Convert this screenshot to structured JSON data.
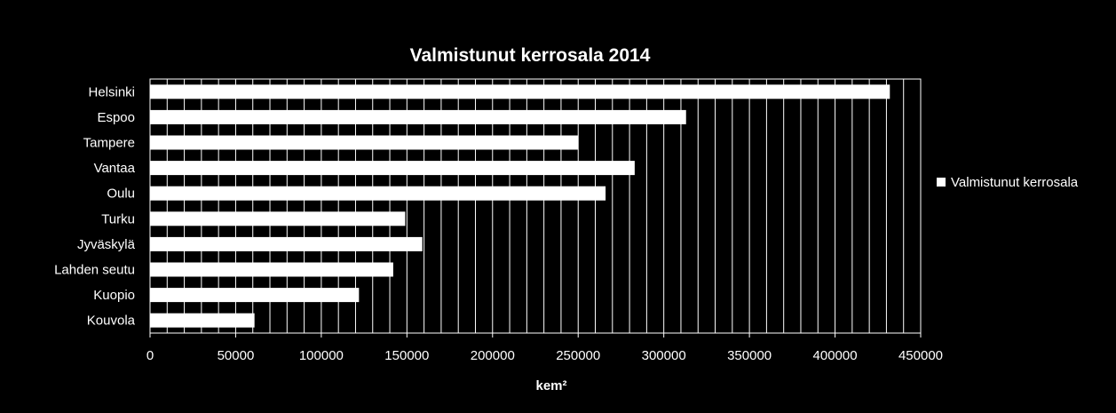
{
  "chart_data": {
    "type": "bar",
    "orientation": "horizontal",
    "title": "Valmistunut kerrosala 2014",
    "xlabel": "kem²",
    "ylabel": "",
    "categories": [
      "Helsinki",
      "Espoo",
      "Tampere",
      "Vantaa",
      "Oulu",
      "Turku",
      "Jyväskylä",
      "Lahden seutu",
      "Kuopio",
      "Kouvola"
    ],
    "series": [
      {
        "name": "Valmistunut kerrosala",
        "values": [
          432000,
          313000,
          250000,
          283000,
          266000,
          149000,
          159000,
          142000,
          122000,
          61000
        ]
      }
    ],
    "xlim": [
      0,
      450000
    ],
    "x_ticks": [
      "0",
      "50000",
      "100000",
      "150000",
      "200000",
      "250000",
      "300000",
      "350000",
      "400000",
      "450000"
    ],
    "grid": true,
    "legend": "right",
    "colors": {
      "background": "#000000",
      "bar": "#ffffff",
      "grid": "#ffffff",
      "text": "#ffffff"
    }
  }
}
